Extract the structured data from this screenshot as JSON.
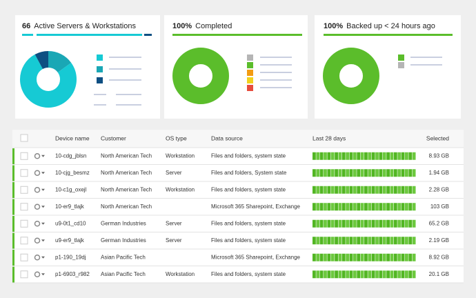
{
  "cards": [
    {
      "count": "66",
      "label": "Active Servers & Workstations",
      "donut": {
        "type": "donut",
        "values": [
          15,
          77,
          8
        ],
        "colors": [
          "#1aa7b5",
          "#16cad4",
          "#0e4f82"
        ]
      }
    },
    {
      "count": "100%",
      "label": "Completed",
      "donut": {
        "type": "donut",
        "values": [
          100
        ],
        "colors": [
          "#5bbd2b"
        ]
      }
    },
    {
      "count": "100%",
      "label": "Backed up < 24 hours ago",
      "donut": {
        "type": "donut",
        "values": [
          100
        ],
        "colors": [
          "#5bbd2b"
        ]
      }
    }
  ],
  "table": {
    "columns": [
      "Device name",
      "Customer",
      "OS type",
      "Data source",
      "Last 28 days",
      "Selected"
    ],
    "rows": [
      [
        "10-cdg_jblsn",
        "North American Tech",
        "Workstation",
        "Files and folders, system state",
        "8.93 GB"
      ],
      [
        "10-cjg_besmz",
        "North American Tech",
        "Server",
        "Files and folders, System state",
        "1.94 GB"
      ],
      [
        "10-c1g_oxejl",
        "North American Tech",
        "Workstation",
        "Files and folders, system state",
        "2.28 GB"
      ],
      [
        "10-er9_tlajk",
        "North American Tech",
        null,
        "Microsoft 365 Sharepoint, Exchange",
        "103 GB"
      ],
      [
        "u9-0t1_cd10",
        "German Industries",
        "Server",
        "Files and folders, system state",
        "65.2 GB"
      ],
      [
        "u9-er9_tlajk",
        "German Industries",
        "Server",
        "Files and folders, system state",
        "2.19 GB"
      ],
      [
        "p1-190_19dj",
        "Asian Pacific Tech",
        null,
        "Microsoft 365 Sharepoint, Exchange",
        "8.92 GB"
      ],
      [
        "p1-6903_r982",
        "Asian Pacific Tech",
        "Workstation",
        "Files and folders, system state",
        "20.1 GB"
      ]
    ]
  }
}
